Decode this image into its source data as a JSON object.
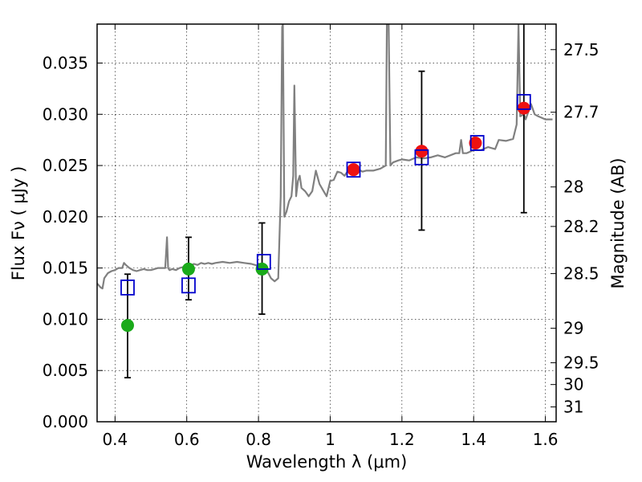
{
  "chart_data": {
    "type": "scatter",
    "title": "",
    "xlabel": "Wavelength  λ (μm)",
    "ylabel": "Flux  Fν  ( μJy )",
    "ylabel_right": "Magnitude (AB)",
    "xlim": [
      0.35,
      1.63
    ],
    "ylim": [
      0.0,
      0.0388
    ],
    "grid": true,
    "colors": {
      "spectrum": "#808080",
      "model": "#0000cc",
      "observed_green": "#1aaa1a",
      "observed_red": "#ee1111",
      "errorbar": "#000000"
    },
    "x_ticks": [
      {
        "value": 0.4,
        "label": "0.4"
      },
      {
        "value": 0.6,
        "label": "0.6"
      },
      {
        "value": 0.8,
        "label": "0.8"
      },
      {
        "value": 1.0,
        "label": "1"
      },
      {
        "value": 1.2,
        "label": "1.2"
      },
      {
        "value": 1.4,
        "label": "1.4"
      },
      {
        "value": 1.6,
        "label": "1.6"
      }
    ],
    "y_ticks": [
      {
        "value": 0.0,
        "label": "0.000"
      },
      {
        "value": 0.005,
        "label": "0.005"
      },
      {
        "value": 0.01,
        "label": "0.010"
      },
      {
        "value": 0.015,
        "label": "0.015"
      },
      {
        "value": 0.02,
        "label": "0.020"
      },
      {
        "value": 0.025,
        "label": "0.025"
      },
      {
        "value": 0.03,
        "label": "0.030"
      },
      {
        "value": 0.035,
        "label": "0.035"
      }
    ],
    "mag_ticks": [
      {
        "value": 27.5,
        "label": "27.5"
      },
      {
        "value": 27.7,
        "label": "27.7"
      },
      {
        "value": 28.0,
        "label": "28"
      },
      {
        "value": 28.2,
        "label": "28.2"
      },
      {
        "value": 28.5,
        "label": "28.5"
      },
      {
        "value": 29.0,
        "label": "29"
      },
      {
        "value": 29.5,
        "label": "29.5"
      },
      {
        "value": 30.0,
        "label": "30"
      },
      {
        "value": 31.0,
        "label": "31"
      }
    ],
    "spectrum": {
      "name": "spectrum",
      "x": [
        0.35,
        0.36,
        0.365,
        0.37,
        0.38,
        0.39,
        0.4,
        0.41,
        0.42,
        0.425,
        0.43,
        0.44,
        0.45,
        0.46,
        0.47,
        0.48,
        0.49,
        0.5,
        0.51,
        0.52,
        0.53,
        0.54,
        0.545,
        0.548,
        0.552,
        0.56,
        0.57,
        0.58,
        0.59,
        0.6,
        0.61,
        0.62,
        0.63,
        0.64,
        0.65,
        0.66,
        0.67,
        0.68,
        0.7,
        0.72,
        0.74,
        0.76,
        0.78,
        0.8,
        0.82,
        0.835,
        0.845,
        0.855,
        0.862,
        0.866,
        0.868,
        0.872,
        0.878,
        0.885,
        0.892,
        0.897,
        0.9,
        0.905,
        0.91,
        0.915,
        0.92,
        0.93,
        0.94,
        0.95,
        0.96,
        0.97,
        0.98,
        0.99,
        1.0,
        1.01,
        1.02,
        1.03,
        1.04,
        1.05,
        1.06,
        1.07,
        1.08,
        1.09,
        1.1,
        1.12,
        1.14,
        1.155,
        1.158,
        1.163,
        1.168,
        1.175,
        1.19,
        1.2,
        1.22,
        1.24,
        1.26,
        1.28,
        1.3,
        1.32,
        1.35,
        1.36,
        1.365,
        1.37,
        1.38,
        1.4,
        1.42,
        1.44,
        1.46,
        1.47,
        1.49,
        1.51,
        1.52,
        1.525,
        1.53,
        1.535,
        1.54,
        1.545,
        1.55,
        1.56,
        1.57,
        1.58,
        1.6,
        1.62
      ],
      "y": [
        0.0135,
        0.0131,
        0.013,
        0.014,
        0.0145,
        0.0147,
        0.0148,
        0.015,
        0.015,
        0.0155,
        0.0153,
        0.015,
        0.0148,
        0.0147,
        0.0148,
        0.0149,
        0.0148,
        0.0148,
        0.0149,
        0.015,
        0.015,
        0.015,
        0.018,
        0.015,
        0.0148,
        0.0149,
        0.0148,
        0.015,
        0.0151,
        0.0148,
        0.0152,
        0.0154,
        0.0153,
        0.0155,
        0.0154,
        0.0155,
        0.0154,
        0.0155,
        0.0156,
        0.0155,
        0.0156,
        0.0155,
        0.0154,
        0.0152,
        0.015,
        0.014,
        0.0137,
        0.014,
        0.022,
        0.0385,
        0.0388,
        0.02,
        0.0205,
        0.0215,
        0.022,
        0.024,
        0.0328,
        0.022,
        0.0235,
        0.024,
        0.0228,
        0.0225,
        0.022,
        0.0225,
        0.0245,
        0.0232,
        0.0226,
        0.022,
        0.0235,
        0.0236,
        0.0244,
        0.0243,
        0.024,
        0.0245,
        0.0242,
        0.0245,
        0.0246,
        0.0244,
        0.0245,
        0.0245,
        0.0247,
        0.025,
        0.0388,
        0.0388,
        0.025,
        0.0253,
        0.0255,
        0.0256,
        0.0255,
        0.0258,
        0.0257,
        0.0258,
        0.026,
        0.0258,
        0.0262,
        0.0262,
        0.0275,
        0.0262,
        0.0262,
        0.0265,
        0.0265,
        0.0268,
        0.0266,
        0.0275,
        0.0274,
        0.0276,
        0.029,
        0.0388,
        0.0298,
        0.0299,
        0.03,
        0.0295,
        0.03,
        0.031,
        0.03,
        0.0298,
        0.0295,
        0.0295
      ]
    },
    "model_points": {
      "name": "model",
      "x": [
        0.435,
        0.605,
        0.815,
        1.065,
        1.255,
        1.41,
        1.54
      ],
      "y": [
        0.0131,
        0.0133,
        0.0156,
        0.0246,
        0.0258,
        0.0272,
        0.0312
      ]
    },
    "observed_points": {
      "name": "observed",
      "x": [
        0.435,
        0.605,
        0.81,
        1.065,
        1.255,
        1.405,
        1.54
      ],
      "y": [
        0.0094,
        0.0149,
        0.0149,
        0.0246,
        0.0264,
        0.0272,
        0.0306
      ],
      "color": [
        "green",
        "green",
        "green",
        "red",
        "red",
        "red",
        "red"
      ]
    },
    "error_bars": [
      {
        "x": 0.435,
        "low": 0.0043,
        "high": 0.0144
      },
      {
        "x": 0.605,
        "low": 0.0119,
        "high": 0.018
      },
      {
        "x": 0.81,
        "low": 0.0105,
        "high": 0.0194
      },
      {
        "x": 1.255,
        "low": 0.0187,
        "high": 0.0342
      },
      {
        "x": 1.54,
        "low": 0.0204,
        "high": 0.0395
      }
    ]
  }
}
